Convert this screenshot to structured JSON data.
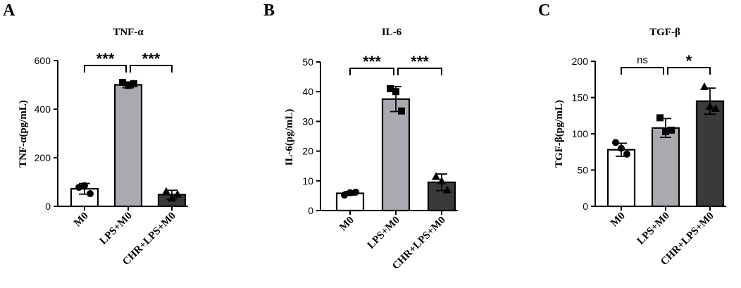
{
  "chart_data": [
    {
      "type": "bar",
      "panel": "A",
      "title": "TNF-α",
      "ylabel": "TNF-α(pg/mL)",
      "categories": [
        "M0",
        "LPS+M0",
        "CHR+LPS+M0"
      ],
      "values": [
        72,
        500,
        48
      ],
      "errors": [
        22,
        12,
        18
      ],
      "points": [
        [
          78,
          85,
          52
        ],
        [
          510,
          498,
          505
        ],
        [
          62,
          34,
          50
        ]
      ],
      "markers": [
        "circle",
        "square",
        "triangle"
      ],
      "colors": [
        "#ffffff",
        "#a9a9b0",
        "#3a3a3a"
      ],
      "ylim": [
        0,
        600
      ],
      "yticks": [
        0,
        200,
        400,
        600
      ],
      "significance": [
        {
          "from": 0,
          "to": 1,
          "label": "***"
        },
        {
          "from": 1,
          "to": 2,
          "label": "***"
        }
      ]
    },
    {
      "type": "bar",
      "panel": "B",
      "title": "IL-6",
      "ylabel": "IL-6(pg/mL)",
      "categories": [
        "M0",
        "LPS+M0",
        "CHR+LPS+M0"
      ],
      "values": [
        5.8,
        37.5,
        9.5
      ],
      "errors": [
        0.6,
        4.2,
        2.8
      ],
      "points": [
        [
          5.2,
          6.0,
          6.2
        ],
        [
          41.0,
          40.0,
          33.5
        ],
        [
          11.5,
          10.0,
          7.0
        ]
      ],
      "markers": [
        "circle",
        "square",
        "triangle"
      ],
      "colors": [
        "#ffffff",
        "#a9a9b0",
        "#3a3a3a"
      ],
      "ylim": [
        0,
        50
      ],
      "yticks": [
        0,
        10,
        20,
        30,
        40,
        50
      ],
      "significance": [
        {
          "from": 0,
          "to": 1,
          "label": "***"
        },
        {
          "from": 1,
          "to": 2,
          "label": "***"
        }
      ]
    },
    {
      "type": "bar",
      "panel": "C",
      "title": "TGF-β",
      "ylabel": "TGF-β(pg/mL)",
      "categories": [
        "M0",
        "LPS+M0",
        "CHR+LPS+M0"
      ],
      "values": [
        78,
        108,
        145
      ],
      "errors": [
        9,
        13,
        18
      ],
      "points": [
        [
          88,
          80,
          72
        ],
        [
          122,
          103,
          105
        ],
        [
          165,
          138,
          135
        ]
      ],
      "markers": [
        "circle",
        "square",
        "triangle"
      ],
      "colors": [
        "#ffffff",
        "#a9a9b0",
        "#3a3a3a"
      ],
      "ylim": [
        0,
        200
      ],
      "yticks": [
        0,
        50,
        100,
        150,
        200
      ],
      "significance": [
        {
          "from": 0,
          "to": 1,
          "label": "ns"
        },
        {
          "from": 1,
          "to": 2,
          "label": "*"
        }
      ]
    }
  ]
}
